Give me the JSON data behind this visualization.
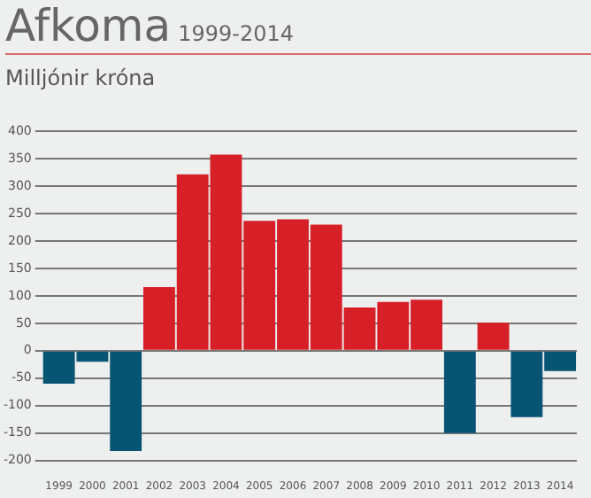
{
  "chart_data": {
    "type": "bar",
    "title": "Afkoma",
    "subtitle": "1999-2014",
    "ylabel": "Milljónir króna",
    "categories": [
      "1999",
      "2000",
      "2001",
      "2002",
      "2003",
      "2004",
      "2005",
      "2006",
      "2007",
      "2008",
      "2009",
      "2010",
      "2011",
      "2012",
      "2013",
      "2014"
    ],
    "values": [
      -60,
      -20,
      -183,
      116,
      322,
      358,
      237,
      240,
      230,
      79,
      89,
      93,
      -150,
      51,
      -121,
      -37
    ],
    "colors": [
      "#085573",
      "#085573",
      "#085573",
      "#d71f27",
      "#d71f27",
      "#d71f27",
      "#d71f27",
      "#d71f27",
      "#d71f27",
      "#d71f27",
      "#d71f27",
      "#d71f27",
      "#085573",
      "#d71f27",
      "#085573",
      "#085573"
    ],
    "ylim": [
      -200,
      400
    ],
    "yticks": [
      -200,
      -150,
      -100,
      -50,
      0,
      50,
      100,
      150,
      200,
      250,
      300,
      350,
      400
    ],
    "grid": "y",
    "legend": false
  }
}
